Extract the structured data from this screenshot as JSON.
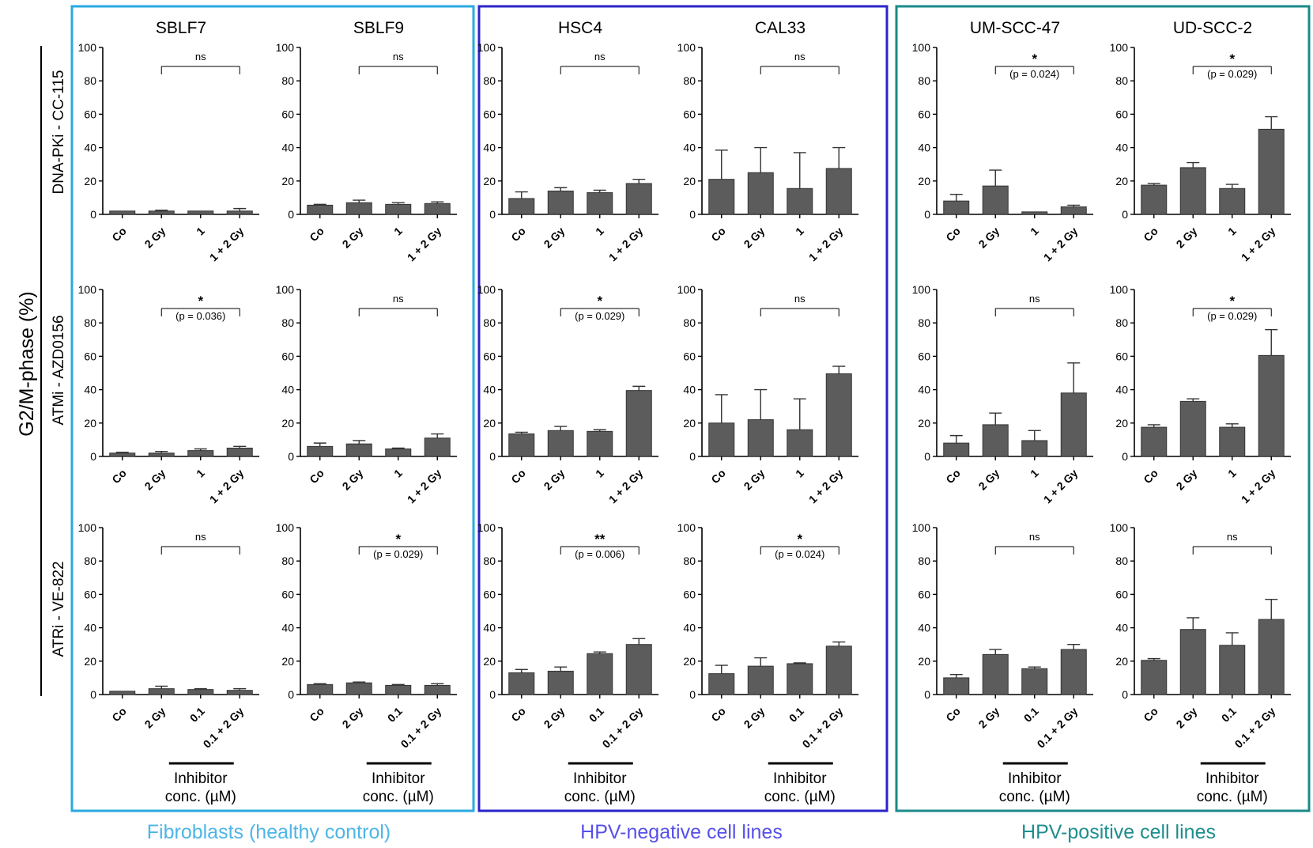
{
  "figure": {
    "y_axis_title": "G2/M-phase (%)",
    "inhibitor_label_line1": "Inhibitor",
    "inhibitor_label_line2": "conc. (µM)",
    "group_labels": [
      "Fibroblasts (healthy control)",
      "HPV-negative cell lines",
      "HPV-positive cell lines"
    ],
    "row_labels": [
      "DNA-PKi - CC-115",
      "ATMi - AZD0156",
      "ATRi - VE-822"
    ],
    "column_titles": [
      "SBLF7",
      "SBLF9",
      "HSC4",
      "CAL33",
      "UM-SCC-47",
      "UD-SCC-2"
    ],
    "colors": {
      "bar": "#5c5c5c",
      "axis": "#000000",
      "group_fibroblast": "#29a9e1",
      "group_hpv_neg": "#2b24c9",
      "group_hpv_pos": "#1a8a8a",
      "label_fibroblast": "#4db6e6",
      "label_hpv_neg": "#5650ea",
      "label_hpv_pos": "#1e8e8e"
    }
  },
  "chart_data": [
    {
      "type": "bar",
      "row": "DNA-PKi - CC-115",
      "title": "SBLF7",
      "categories": [
        "Co",
        "2 Gy",
        "1",
        "1 + 2 Gy"
      ],
      "values": [
        2,
        2,
        2,
        2
      ],
      "errors": [
        0,
        0.5,
        0,
        1.5
      ],
      "ylim": [
        0,
        100
      ],
      "yticks": [
        0,
        20,
        40,
        60,
        80,
        100
      ],
      "significance": "ns",
      "p_value": ""
    },
    {
      "type": "bar",
      "row": "DNA-PKi - CC-115",
      "title": "SBLF9",
      "categories": [
        "Co",
        "2 Gy",
        "1",
        "1 + 2 Gy"
      ],
      "values": [
        5.5,
        7,
        6,
        6.5
      ],
      "errors": [
        0.5,
        1.5,
        1,
        1
      ],
      "ylim": [
        0,
        100
      ],
      "yticks": [
        0,
        20,
        40,
        60,
        80,
        100
      ],
      "significance": "ns",
      "p_value": ""
    },
    {
      "type": "bar",
      "row": "DNA-PKi - CC-115",
      "title": "HSC4",
      "categories": [
        "Co",
        "2 Gy",
        "1",
        "1 + 2 Gy"
      ],
      "values": [
        9.5,
        14,
        13,
        18.5
      ],
      "errors": [
        4,
        2,
        1.5,
        2.5
      ],
      "ylim": [
        0,
        100
      ],
      "yticks": [
        0,
        20,
        40,
        60,
        80,
        100
      ],
      "significance": "ns",
      "p_value": ""
    },
    {
      "type": "bar",
      "row": "DNA-PKi - CC-115",
      "title": "CAL33",
      "categories": [
        "Co",
        "2 Gy",
        "1",
        "1 + 2 Gy"
      ],
      "values": [
        21,
        25,
        15.5,
        27.5
      ],
      "errors": [
        17.5,
        15,
        21.5,
        12.5
      ],
      "ylim": [
        0,
        100
      ],
      "yticks": [
        0,
        20,
        40,
        60,
        80,
        100
      ],
      "significance": "ns",
      "p_value": ""
    },
    {
      "type": "bar",
      "row": "DNA-PKi - CC-115",
      "title": "UM-SCC-47",
      "categories": [
        "Co",
        "2 Gy",
        "1",
        "1 + 2 Gy"
      ],
      "values": [
        8,
        17,
        1.5,
        4.5
      ],
      "errors": [
        4,
        9.5,
        0,
        1
      ],
      "ylim": [
        0,
        100
      ],
      "yticks": [
        0,
        20,
        40,
        60,
        80,
        100
      ],
      "significance": "*",
      "p_value": "(p = 0.024)"
    },
    {
      "type": "bar",
      "row": "DNA-PKi - CC-115",
      "title": "UD-SCC-2",
      "categories": [
        "Co",
        "2 Gy",
        "1",
        "1 + 2 Gy"
      ],
      "values": [
        17.5,
        28,
        15.5,
        51
      ],
      "errors": [
        1,
        3,
        2.5,
        7.5
      ],
      "ylim": [
        0,
        100
      ],
      "yticks": [
        0,
        20,
        40,
        60,
        80,
        100
      ],
      "significance": "*",
      "p_value": "(p = 0.029)"
    },
    {
      "type": "bar",
      "row": "ATMi - AZD0156",
      "title": "SBLF7",
      "categories": [
        "Co",
        "2 Gy",
        "1",
        "1 + 2 Gy"
      ],
      "values": [
        2,
        2,
        3.5,
        5
      ],
      "errors": [
        0.5,
        1,
        1,
        1
      ],
      "ylim": [
        0,
        100
      ],
      "yticks": [
        0,
        20,
        40,
        60,
        80,
        100
      ],
      "significance": "*",
      "p_value": "(p = 0.036)"
    },
    {
      "type": "bar",
      "row": "ATMi - AZD0156",
      "title": "SBLF9",
      "categories": [
        "Co",
        "2 Gy",
        "1",
        "1 + 2 Gy"
      ],
      "values": [
        6,
        7.5,
        4.5,
        11
      ],
      "errors": [
        2,
        2,
        0.5,
        2.5
      ],
      "ylim": [
        0,
        100
      ],
      "yticks": [
        0,
        20,
        40,
        60,
        80,
        100
      ],
      "significance": "ns",
      "p_value": ""
    },
    {
      "type": "bar",
      "row": "ATMi - AZD0156",
      "title": "HSC4",
      "categories": [
        "Co",
        "2 Gy",
        "1",
        "1 + 2 Gy"
      ],
      "values": [
        13.5,
        15.5,
        15,
        39.5
      ],
      "errors": [
        1,
        2.5,
        1,
        2.5
      ],
      "ylim": [
        0,
        100
      ],
      "yticks": [
        0,
        20,
        40,
        60,
        80,
        100
      ],
      "significance": "*",
      "p_value": "(p = 0.029)"
    },
    {
      "type": "bar",
      "row": "ATMi - AZD0156",
      "title": "CAL33",
      "categories": [
        "Co",
        "2 Gy",
        "1",
        "1 + 2 Gy"
      ],
      "values": [
        20,
        22,
        16,
        49.5
      ],
      "errors": [
        17,
        18,
        18.5,
        4.5
      ],
      "ylim": [
        0,
        100
      ],
      "yticks": [
        0,
        20,
        40,
        60,
        80,
        100
      ],
      "significance": "ns",
      "p_value": ""
    },
    {
      "type": "bar",
      "row": "ATMi - AZD0156",
      "title": "UM-SCC-47",
      "categories": [
        "Co",
        "2 Gy",
        "1",
        "1 + 2 Gy"
      ],
      "values": [
        8,
        19,
        9.5,
        38
      ],
      "errors": [
        4.5,
        7,
        6,
        18
      ],
      "ylim": [
        0,
        100
      ],
      "yticks": [
        0,
        20,
        40,
        60,
        80,
        100
      ],
      "significance": "ns",
      "p_value": ""
    },
    {
      "type": "bar",
      "row": "ATMi - AZD0156",
      "title": "UD-SCC-2",
      "categories": [
        "Co",
        "2 Gy",
        "1",
        "1 + 2 Gy"
      ],
      "values": [
        17.5,
        33,
        17.5,
        60.5
      ],
      "errors": [
        1.5,
        1.5,
        2,
        15.5
      ],
      "ylim": [
        0,
        100
      ],
      "yticks": [
        0,
        20,
        40,
        60,
        80,
        100
      ],
      "significance": "*",
      "p_value": "(p = 0.029)"
    },
    {
      "type": "bar",
      "row": "ATRi - VE-822",
      "title": "SBLF7",
      "categories": [
        "Co",
        "2 Gy",
        "0.1",
        "0.1 + 2 Gy"
      ],
      "values": [
        2,
        3.5,
        3,
        2.5
      ],
      "errors": [
        0,
        1.5,
        0.5,
        1
      ],
      "ylim": [
        0,
        100
      ],
      "yticks": [
        0,
        20,
        40,
        60,
        80,
        100
      ],
      "significance": "ns",
      "p_value": ""
    },
    {
      "type": "bar",
      "row": "ATRi - VE-822",
      "title": "SBLF9",
      "categories": [
        "Co",
        "2 Gy",
        "0.1",
        "0.1 + 2 Gy"
      ],
      "values": [
        6,
        7,
        5.5,
        5.5
      ],
      "errors": [
        0.5,
        0.5,
        0.5,
        1
      ],
      "ylim": [
        0,
        100
      ],
      "yticks": [
        0,
        20,
        40,
        60,
        80,
        100
      ],
      "significance": "*",
      "p_value": "(p = 0.029)"
    },
    {
      "type": "bar",
      "row": "ATRi - VE-822",
      "title": "HSC4",
      "categories": [
        "Co",
        "2 Gy",
        "0.1",
        "0.1 + 2 Gy"
      ],
      "values": [
        13,
        14,
        24.5,
        30
      ],
      "errors": [
        2,
        2.5,
        1,
        3.5
      ],
      "ylim": [
        0,
        100
      ],
      "yticks": [
        0,
        20,
        40,
        60,
        80,
        100
      ],
      "significance": "**",
      "p_value": "(p = 0.006)"
    },
    {
      "type": "bar",
      "row": "ATRi - VE-822",
      "title": "CAL33",
      "categories": [
        "Co",
        "2 Gy",
        "0.1",
        "0.1 + 2 Gy"
      ],
      "values": [
        12.5,
        17,
        18.5,
        29
      ],
      "errors": [
        5,
        5,
        0.5,
        2.5
      ],
      "ylim": [
        0,
        100
      ],
      "yticks": [
        0,
        20,
        40,
        60,
        80,
        100
      ],
      "significance": "*",
      "p_value": "(p = 0.024)"
    },
    {
      "type": "bar",
      "row": "ATRi - VE-822",
      "title": "UM-SCC-47",
      "categories": [
        "Co",
        "2 Gy",
        "0.1",
        "0.1 + 2 Gy"
      ],
      "values": [
        10,
        24,
        15.5,
        27
      ],
      "errors": [
        2,
        3,
        1,
        3
      ],
      "ylim": [
        0,
        100
      ],
      "yticks": [
        0,
        20,
        40,
        60,
        80,
        100
      ],
      "significance": "ns",
      "p_value": ""
    },
    {
      "type": "bar",
      "row": "ATRi - VE-822",
      "title": "UD-SCC-2",
      "categories": [
        "Co",
        "2 Gy",
        "0.1",
        "0.1 + 2 Gy"
      ],
      "values": [
        20.5,
        39,
        29.5,
        45
      ],
      "errors": [
        1,
        7,
        7.5,
        12
      ],
      "ylim": [
        0,
        100
      ],
      "yticks": [
        0,
        20,
        40,
        60,
        80,
        100
      ],
      "significance": "ns",
      "p_value": ""
    }
  ]
}
